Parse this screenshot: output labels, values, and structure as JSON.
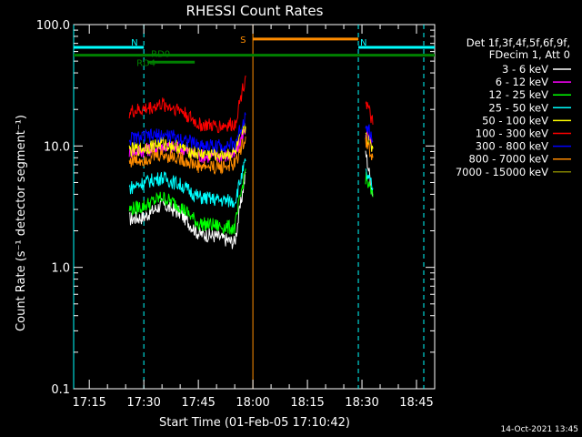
{
  "chart_data": {
    "type": "line",
    "title": "RHESSI Count Rates",
    "xlabel": "Start Time (01-Feb-05 17:10:42)",
    "ylabel": "Count Rate (s⁻¹ detector segment⁻¹)",
    "y_scale": "log",
    "ylim": [
      0.1,
      100.0
    ],
    "xlim": [
      "17:10:42",
      "18:50:00"
    ],
    "x_ticks": [
      "17:15",
      "17:30",
      "17:45",
      "18:00",
      "18:15",
      "18:30",
      "18:45"
    ],
    "y_ticks": [
      "0.1",
      "1.0",
      "10.0",
      "100.0"
    ],
    "grid": false,
    "legend_position": "right",
    "legend_header": [
      "Det 1f,3f,4f,5f,6f,9f,",
      "FDecim 1, Att 0"
    ],
    "date_stamp": "14-Oct-2021 13:45",
    "series": [
      {
        "name": "3 - 6 keV",
        "color": "#ffffff",
        "x": [
          "17:26",
          "17:30",
          "17:35",
          "17:40",
          "17:45",
          "17:50",
          "17:55",
          "17:58",
          "18:31",
          "18:33"
        ],
        "values": [
          2.5,
          2.6,
          3.3,
          2.8,
          1.9,
          1.8,
          1.6,
          6.0,
          9.0,
          4.0
        ]
      },
      {
        "name": "6 - 12 keV",
        "color": "#ff00ff",
        "x": [
          "17:26",
          "17:30",
          "17:35",
          "17:40",
          "17:45",
          "17:50",
          "17:55",
          "17:58",
          "18:31",
          "18:33"
        ],
        "values": [
          9.0,
          9.2,
          10.0,
          9.5,
          8.3,
          8.2,
          8.4,
          14.0,
          13.0,
          9.5
        ]
      },
      {
        "name": "12 - 25 keV",
        "color": "#00ff00",
        "x": [
          "17:26",
          "17:30",
          "17:35",
          "17:40",
          "17:45",
          "17:50",
          "17:55",
          "17:58",
          "18:31",
          "18:33"
        ],
        "values": [
          3.0,
          3.2,
          3.8,
          3.2,
          2.3,
          2.2,
          2.1,
          6.5,
          5.5,
          3.8
        ]
      },
      {
        "name": "25 - 50 keV",
        "color": "#00ffff",
        "x": [
          "17:26",
          "17:30",
          "17:35",
          "17:40",
          "17:45",
          "17:50",
          "17:55",
          "17:58",
          "18:31",
          "18:33"
        ],
        "values": [
          4.5,
          5.0,
          5.5,
          4.8,
          3.8,
          3.6,
          3.5,
          7.5,
          6.0,
          4.5
        ]
      },
      {
        "name": "50 - 100 keV",
        "color": "#ffff00",
        "x": [
          "17:26",
          "17:30",
          "17:35",
          "17:40",
          "17:45",
          "17:50",
          "17:55",
          "17:58",
          "18:31",
          "18:33"
        ],
        "values": [
          9.2,
          9.6,
          10.5,
          9.8,
          8.6,
          8.5,
          8.7,
          14.5,
          12.5,
          9.5
        ]
      },
      {
        "name": "100 - 300 keV",
        "color": "#ff0000",
        "x": [
          "17:26",
          "17:30",
          "17:35",
          "17:40",
          "17:45",
          "17:50",
          "17:55",
          "17:58",
          "18:31",
          "18:33"
        ],
        "values": [
          19.0,
          20.0,
          22.0,
          20.0,
          15.0,
          14.5,
          15.0,
          38.0,
          24.0,
          15.0
        ]
      },
      {
        "name": "300 - 800 keV",
        "color": "#0000ff",
        "x": [
          "17:26",
          "17:30",
          "17:35",
          "17:40",
          "17:45",
          "17:50",
          "17:55",
          "17:58",
          "18:31",
          "18:33"
        ],
        "values": [
          11.5,
          11.8,
          12.3,
          11.7,
          10.2,
          10.0,
          10.3,
          18.0,
          16.0,
          11.0
        ]
      },
      {
        "name": "800 - 7000 keV",
        "color": "#ff8c00",
        "x": [
          "17:26",
          "17:30",
          "17:35",
          "17:40",
          "17:45",
          "17:50",
          "17:55",
          "17:58",
          "18:31",
          "18:33"
        ],
        "values": [
          7.5,
          7.8,
          8.5,
          7.9,
          6.8,
          6.7,
          7.0,
          12.0,
          11.0,
          8.0
        ]
      },
      {
        "name": "7000 - 15000 keV",
        "color": "#808000",
        "x": [],
        "values": []
      }
    ],
    "markers": [
      {
        "label": "N",
        "start": "17:10:42",
        "end": "17:30",
        "color": "#00ffff",
        "level": 65
      },
      {
        "label": "N",
        "start": "18:29",
        "end": "18:50",
        "color": "#00ffff",
        "level": 65
      },
      {
        "label": "S",
        "start": "18:00",
        "end": "18:29",
        "color": "#ff8c00",
        "level": 76
      },
      {
        "label": "RD4",
        "start": "17:10:42",
        "end": "18:50",
        "color": "#008000",
        "level": 56
      },
      {
        "label": "RD0",
        "start": "17:31",
        "end": "17:44",
        "color": "#008000",
        "level": 49
      }
    ],
    "vertical_lines": [
      {
        "time": "17:10:42",
        "color": "#00ffff",
        "style": "solid"
      },
      {
        "time": "17:30",
        "color": "#00ffff",
        "style": "dashed"
      },
      {
        "time": "18:00",
        "color": "#ff8c00",
        "style": "solid"
      },
      {
        "time": "18:29",
        "color": "#00ffff",
        "style": "dashed"
      },
      {
        "time": "18:47",
        "color": "#00ffff",
        "style": "dashed"
      }
    ]
  }
}
